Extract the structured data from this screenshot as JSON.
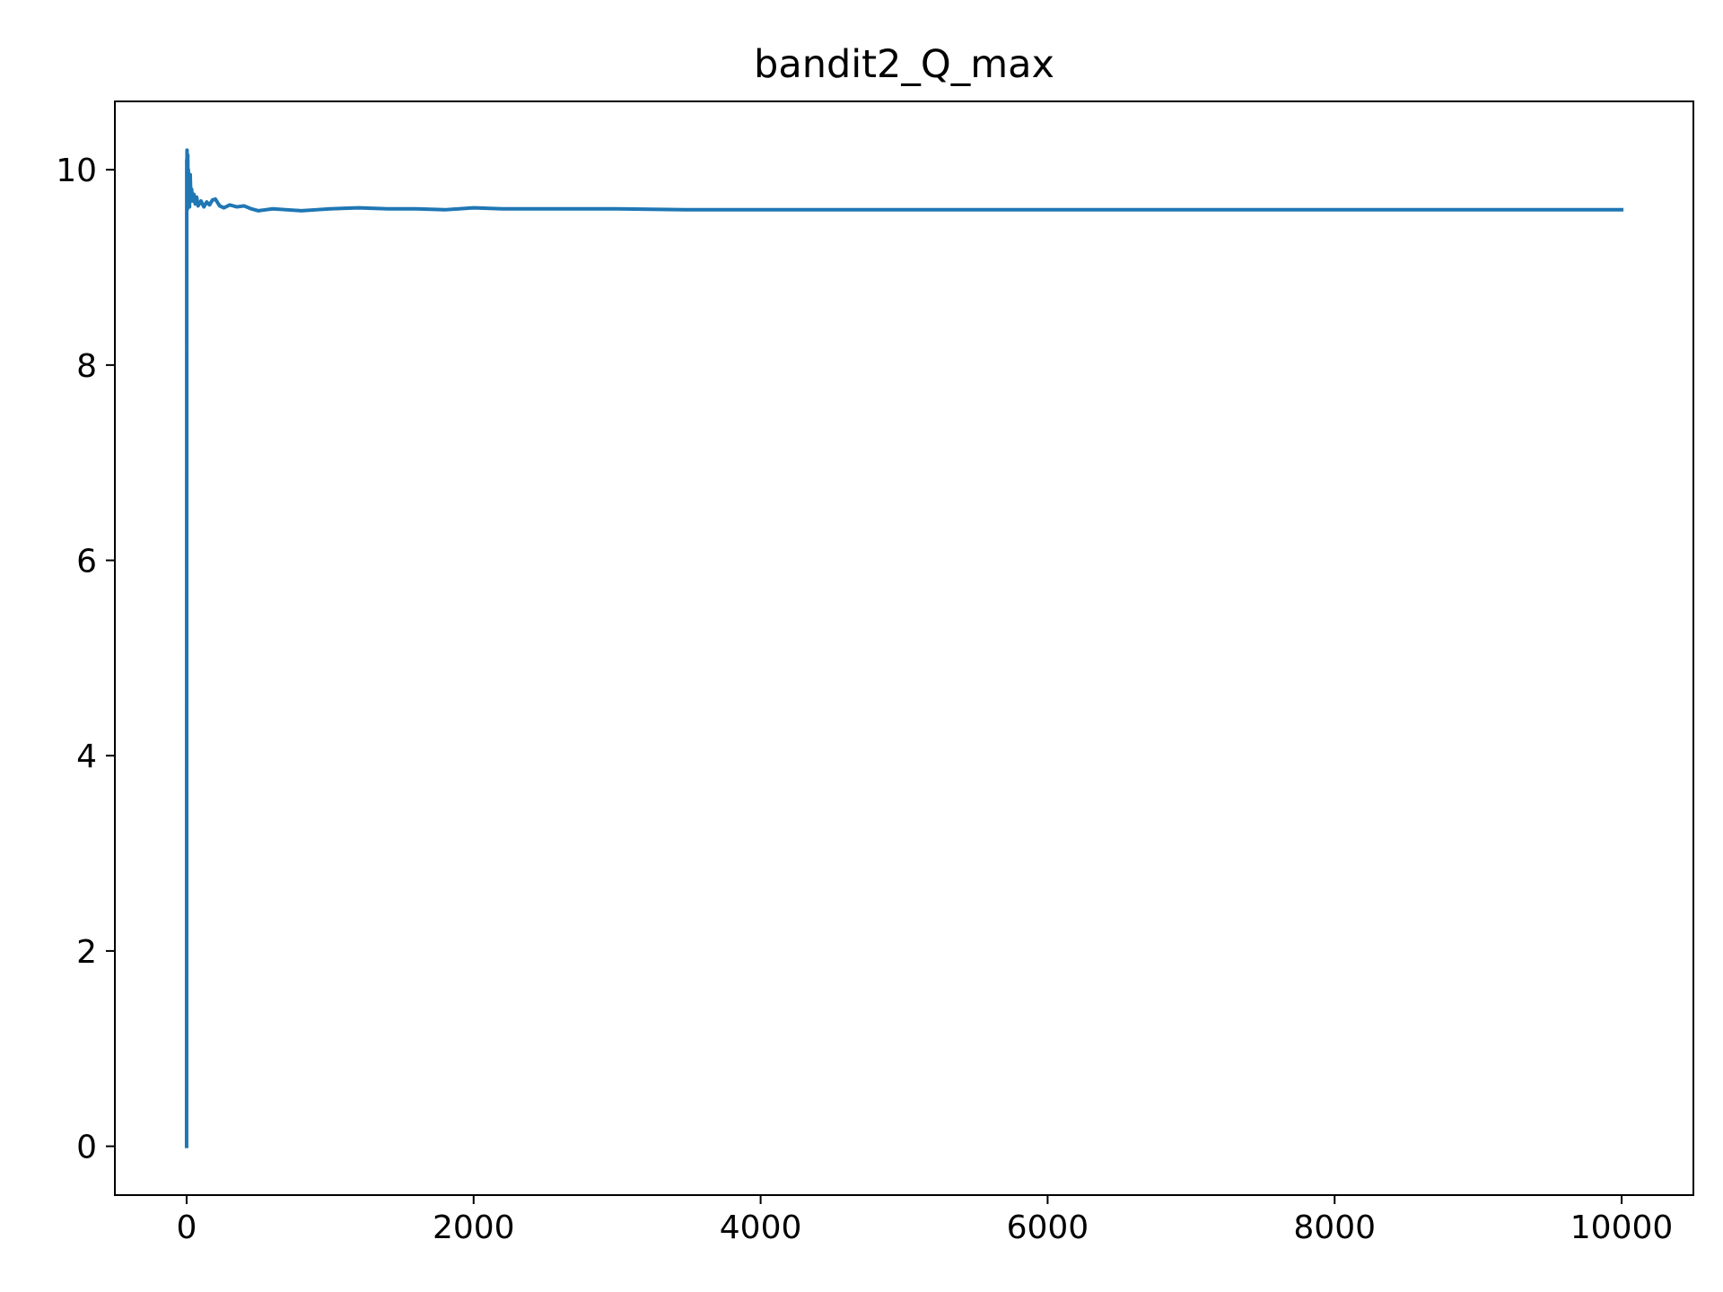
{
  "chart_data": {
    "type": "line",
    "title": "bandit2_Q_max",
    "xlabel": "",
    "ylabel": "",
    "xlim": [
      -500,
      10500
    ],
    "ylim": [
      -0.5,
      10.7
    ],
    "xticks": [
      0,
      2000,
      4000,
      6000,
      8000,
      10000
    ],
    "xtick_labels": [
      "0",
      "2000",
      "4000",
      "6000",
      "8000",
      "10000"
    ],
    "yticks": [
      0,
      2,
      4,
      6,
      8,
      10
    ],
    "ytick_labels": [
      "0",
      "2",
      "4",
      "6",
      "8",
      "10"
    ],
    "grid": false,
    "series": [
      {
        "color": "#1f77b4",
        "x": [
          0,
          1,
          2,
          3,
          4,
          5,
          6,
          8,
          10,
          12,
          15,
          18,
          20,
          25,
          30,
          35,
          40,
          50,
          60,
          70,
          80,
          100,
          120,
          140,
          160,
          180,
          200,
          230,
          260,
          300,
          350,
          400,
          450,
          500,
          550,
          600,
          700,
          800,
          900,
          1000,
          1200,
          1400,
          1600,
          1800,
          2000,
          2200,
          2500,
          2800,
          3000,
          3500,
          4000,
          4500,
          5000,
          5500,
          6000,
          6500,
          7000,
          7500,
          8000,
          8500,
          9000,
          9500,
          10000
        ],
        "y": [
          0.0,
          10.1,
          9.65,
          10.2,
          9.9,
          10.05,
          9.6,
          10.15,
          9.75,
          10.0,
          9.7,
          9.85,
          9.62,
          9.95,
          9.7,
          9.8,
          9.68,
          9.75,
          9.65,
          9.72,
          9.63,
          9.68,
          9.62,
          9.67,
          9.64,
          9.69,
          9.7,
          9.63,
          9.61,
          9.64,
          9.62,
          9.63,
          9.6,
          9.58,
          9.59,
          9.6,
          9.59,
          9.58,
          9.59,
          9.6,
          9.61,
          9.6,
          9.6,
          9.59,
          9.61,
          9.6,
          9.6,
          9.6,
          9.6,
          9.59,
          9.59,
          9.59,
          9.59,
          9.59,
          9.59,
          9.59,
          9.59,
          9.59,
          9.59,
          9.59,
          9.59,
          9.59,
          9.59
        ]
      }
    ]
  }
}
